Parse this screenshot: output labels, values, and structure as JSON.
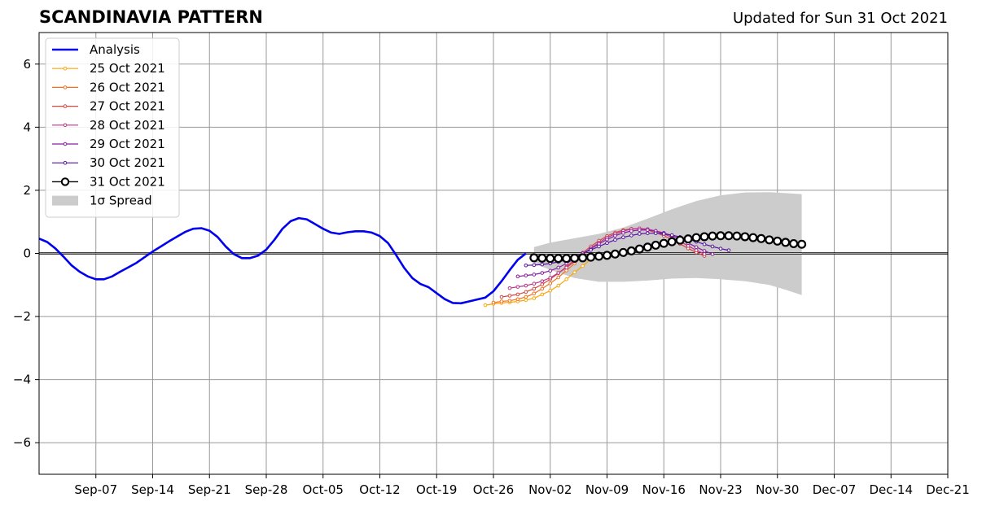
{
  "chart_data": {
    "type": "line",
    "title": "SCANDINAVIA PATTERN",
    "subtitle": "Updated for Sun 31 Oct 2021",
    "xlabel": "",
    "ylabel": "",
    "xlim": [
      "2021-08-31",
      "2021-12-21"
    ],
    "ylim": [
      -7,
      7
    ],
    "x_ticks": [
      "2021-09-07",
      "2021-09-14",
      "2021-09-21",
      "2021-09-28",
      "2021-10-05",
      "2021-10-12",
      "2021-10-19",
      "2021-10-26",
      "2021-11-02",
      "2021-11-09",
      "2021-11-16",
      "2021-11-23",
      "2021-11-30",
      "2021-12-07",
      "2021-12-14",
      "2021-12-21"
    ],
    "x_tick_labels": [
      "Sep-07",
      "Sep-14",
      "Sep-21",
      "Sep-28",
      "Oct-05",
      "Oct-12",
      "Oct-19",
      "Oct-26",
      "Nov-02",
      "Nov-09",
      "Nov-16",
      "Nov-23",
      "Nov-30",
      "Dec-07",
      "Dec-14",
      "Dec-21"
    ],
    "y_ticks": [
      -6,
      -4,
      -2,
      0,
      2,
      4,
      6
    ],
    "y_tick_labels": [
      "−6",
      "−4",
      "−2",
      "0",
      "2",
      "4",
      "6"
    ],
    "grid": true,
    "legend_position": "upper-left",
    "zero_line": 0,
    "analysis": {
      "name": "Analysis",
      "color": "#0000ee",
      "points": [
        [
          "2021-08-31",
          0.47
        ],
        [
          "2021-09-01",
          0.36
        ],
        [
          "2021-09-02",
          0.16
        ],
        [
          "2021-09-03",
          -0.1
        ],
        [
          "2021-09-04",
          -0.38
        ],
        [
          "2021-09-05",
          -0.58
        ],
        [
          "2021-09-06",
          -0.73
        ],
        [
          "2021-09-07",
          -0.82
        ],
        [
          "2021-09-08",
          -0.82
        ],
        [
          "2021-09-09",
          -0.73
        ],
        [
          "2021-09-10",
          -0.58
        ],
        [
          "2021-09-11",
          -0.44
        ],
        [
          "2021-09-12",
          -0.3
        ],
        [
          "2021-09-13",
          -0.12
        ],
        [
          "2021-09-14",
          0.06
        ],
        [
          "2021-09-15",
          0.22
        ],
        [
          "2021-09-16",
          0.38
        ],
        [
          "2021-09-17",
          0.53
        ],
        [
          "2021-09-18",
          0.68
        ],
        [
          "2021-09-19",
          0.78
        ],
        [
          "2021-09-20",
          0.8
        ],
        [
          "2021-09-21",
          0.72
        ],
        [
          "2021-09-22",
          0.52
        ],
        [
          "2021-09-23",
          0.22
        ],
        [
          "2021-09-24",
          -0.02
        ],
        [
          "2021-09-25",
          -0.15
        ],
        [
          "2021-09-26",
          -0.15
        ],
        [
          "2021-09-27",
          -0.07
        ],
        [
          "2021-09-28",
          0.12
        ],
        [
          "2021-09-29",
          0.43
        ],
        [
          "2021-09-30",
          0.78
        ],
        [
          "2021-10-01",
          1.02
        ],
        [
          "2021-10-02",
          1.12
        ],
        [
          "2021-10-03",
          1.08
        ],
        [
          "2021-10-04",
          0.93
        ],
        [
          "2021-10-05",
          0.78
        ],
        [
          "2021-10-06",
          0.66
        ],
        [
          "2021-10-07",
          0.62
        ],
        [
          "2021-10-08",
          0.67
        ],
        [
          "2021-10-09",
          0.7
        ],
        [
          "2021-10-10",
          0.7
        ],
        [
          "2021-10-11",
          0.66
        ],
        [
          "2021-10-12",
          0.55
        ],
        [
          "2021-10-13",
          0.33
        ],
        [
          "2021-10-14",
          -0.05
        ],
        [
          "2021-10-15",
          -0.46
        ],
        [
          "2021-10-16",
          -0.78
        ],
        [
          "2021-10-17",
          -0.97
        ],
        [
          "2021-10-18",
          -1.07
        ],
        [
          "2021-10-19",
          -1.26
        ],
        [
          "2021-10-20",
          -1.45
        ],
        [
          "2021-10-21",
          -1.57
        ],
        [
          "2021-10-22",
          -1.58
        ],
        [
          "2021-10-23",
          -1.52
        ],
        [
          "2021-10-24",
          -1.46
        ],
        [
          "2021-10-25",
          -1.4
        ],
        [
          "2021-10-26",
          -1.2
        ],
        [
          "2021-10-27",
          -0.88
        ],
        [
          "2021-10-28",
          -0.53
        ],
        [
          "2021-10-29",
          -0.2
        ],
        [
          "2021-10-30",
          0.0
        ]
      ]
    },
    "forecasts": [
      {
        "name": "25 Oct 2021",
        "color": "#fca50a",
        "points": [
          [
            "2021-10-25",
            -1.64
          ],
          [
            "2021-10-26",
            -1.6
          ],
          [
            "2021-10-27",
            -1.57
          ],
          [
            "2021-10-28",
            -1.55
          ],
          [
            "2021-10-29",
            -1.52
          ],
          [
            "2021-10-30",
            -1.48
          ],
          [
            "2021-10-31",
            -1.42
          ],
          [
            "2021-11-01",
            -1.3
          ],
          [
            "2021-11-02",
            -1.18
          ],
          [
            "2021-11-03",
            -1.02
          ],
          [
            "2021-11-04",
            -0.82
          ],
          [
            "2021-11-05",
            -0.6
          ],
          [
            "2021-11-06",
            -0.4
          ],
          [
            "2021-11-07",
            -0.18
          ]
        ]
      },
      {
        "name": "26 Oct 2021",
        "color": "#f1731d",
        "points": [
          [
            "2021-10-26",
            -1.56
          ],
          [
            "2021-10-27",
            -1.52
          ],
          [
            "2021-10-28",
            -1.5
          ],
          [
            "2021-10-29",
            -1.45
          ],
          [
            "2021-10-30",
            -1.38
          ],
          [
            "2021-10-31",
            -1.27
          ],
          [
            "2021-11-01",
            -1.12
          ],
          [
            "2021-11-02",
            -0.95
          ],
          [
            "2021-11-03",
            -0.76
          ],
          [
            "2021-11-04",
            -0.54
          ],
          [
            "2021-11-05",
            -0.32
          ],
          [
            "2021-11-06",
            -0.1
          ]
        ]
      },
      {
        "name": "27 Oct 2021",
        "color": "#d44842",
        "points": [
          [
            "2021-10-27",
            -1.38
          ],
          [
            "2021-10-28",
            -1.34
          ],
          [
            "2021-10-29",
            -1.3
          ],
          [
            "2021-10-30",
            -1.22
          ],
          [
            "2021-10-31",
            -1.12
          ],
          [
            "2021-11-01",
            -0.98
          ],
          [
            "2021-11-02",
            -0.82
          ],
          [
            "2021-11-03",
            -0.63
          ],
          [
            "2021-11-04",
            -0.42
          ],
          [
            "2021-11-05",
            -0.2
          ],
          [
            "2021-11-06",
            0.02
          ],
          [
            "2021-11-07",
            0.22
          ],
          [
            "2021-11-08",
            0.4
          ],
          [
            "2021-11-09",
            0.55
          ],
          [
            "2021-11-10",
            0.66
          ],
          [
            "2021-11-11",
            0.74
          ],
          [
            "2021-11-12",
            0.78
          ],
          [
            "2021-11-13",
            0.78
          ],
          [
            "2021-11-14",
            0.74
          ],
          [
            "2021-11-15",
            0.66
          ],
          [
            "2021-11-16",
            0.56
          ],
          [
            "2021-11-17",
            0.44
          ],
          [
            "2021-11-18",
            0.3
          ],
          [
            "2021-11-19",
            0.16
          ],
          [
            "2021-11-20",
            0.03
          ],
          [
            "2021-11-21",
            -0.08
          ]
        ]
      },
      {
        "name": "28 Oct 2021",
        "color": "#bc3587",
        "points": [
          [
            "2021-10-28",
            -1.1
          ],
          [
            "2021-10-29",
            -1.06
          ],
          [
            "2021-10-30",
            -1.02
          ],
          [
            "2021-10-31",
            -0.96
          ],
          [
            "2021-11-01",
            -0.88
          ],
          [
            "2021-11-02",
            -0.77
          ],
          [
            "2021-11-03",
            -0.62
          ],
          [
            "2021-11-04",
            -0.45
          ],
          [
            "2021-11-05",
            -0.25
          ],
          [
            "2021-11-06",
            -0.04
          ],
          [
            "2021-11-07",
            0.16
          ],
          [
            "2021-11-08",
            0.34
          ],
          [
            "2021-11-09",
            0.5
          ],
          [
            "2021-11-10",
            0.62
          ],
          [
            "2021-11-11",
            0.71
          ],
          [
            "2021-11-12",
            0.77
          ],
          [
            "2021-11-13",
            0.79
          ],
          [
            "2021-11-14",
            0.77
          ],
          [
            "2021-11-15",
            0.71
          ],
          [
            "2021-11-16",
            0.62
          ],
          [
            "2021-11-17",
            0.51
          ],
          [
            "2021-11-18",
            0.38
          ],
          [
            "2021-11-19",
            0.24
          ],
          [
            "2021-11-20",
            0.1
          ],
          [
            "2021-11-21",
            -0.02
          ]
        ]
      },
      {
        "name": "29 Oct 2021",
        "color": "#8a1ea0",
        "points": [
          [
            "2021-10-29",
            -0.73
          ],
          [
            "2021-10-30",
            -0.7
          ],
          [
            "2021-10-31",
            -0.67
          ],
          [
            "2021-11-01",
            -0.62
          ],
          [
            "2021-11-02",
            -0.55
          ],
          [
            "2021-11-03",
            -0.45
          ],
          [
            "2021-11-04",
            -0.32
          ],
          [
            "2021-11-05",
            -0.17
          ],
          [
            "2021-11-06",
            -0.01
          ],
          [
            "2021-11-07",
            0.15
          ],
          [
            "2021-11-08",
            0.3
          ],
          [
            "2021-11-09",
            0.44
          ],
          [
            "2021-11-10",
            0.56
          ],
          [
            "2021-11-11",
            0.65
          ],
          [
            "2021-11-12",
            0.71
          ],
          [
            "2021-11-13",
            0.74
          ],
          [
            "2021-11-14",
            0.74
          ],
          [
            "2021-11-15",
            0.71
          ],
          [
            "2021-11-16",
            0.65
          ],
          [
            "2021-11-17",
            0.56
          ],
          [
            "2021-11-18",
            0.45
          ],
          [
            "2021-11-19",
            0.33
          ],
          [
            "2021-11-20",
            0.2
          ],
          [
            "2021-11-21",
            0.08
          ],
          [
            "2021-11-22",
            -0.02
          ]
        ]
      },
      {
        "name": "30 Oct 2021",
        "color": "#5712a0",
        "points": [
          [
            "2021-10-30",
            -0.38
          ],
          [
            "2021-10-31",
            -0.37
          ],
          [
            "2021-11-01",
            -0.35
          ],
          [
            "2021-11-02",
            -0.32
          ],
          [
            "2021-11-03",
            -0.27
          ],
          [
            "2021-11-04",
            -0.2
          ],
          [
            "2021-11-05",
            -0.11
          ],
          [
            "2021-11-06",
            0.0
          ],
          [
            "2021-11-07",
            0.11
          ],
          [
            "2021-11-08",
            0.22
          ],
          [
            "2021-11-09",
            0.33
          ],
          [
            "2021-11-10",
            0.43
          ],
          [
            "2021-11-11",
            0.51
          ],
          [
            "2021-11-12",
            0.57
          ],
          [
            "2021-11-13",
            0.62
          ],
          [
            "2021-11-14",
            0.64
          ],
          [
            "2021-11-15",
            0.64
          ],
          [
            "2021-11-16",
            0.62
          ],
          [
            "2021-11-17",
            0.58
          ],
          [
            "2021-11-18",
            0.52
          ],
          [
            "2021-11-19",
            0.45
          ],
          [
            "2021-11-20",
            0.37
          ],
          [
            "2021-11-21",
            0.29
          ],
          [
            "2021-11-22",
            0.22
          ],
          [
            "2021-11-23",
            0.15
          ],
          [
            "2021-11-24",
            0.1
          ]
        ]
      }
    ],
    "latest": {
      "name": "31 Oct 2021",
      "color": "#000000",
      "points": [
        [
          "2021-10-31",
          -0.14
        ],
        [
          "2021-11-01",
          -0.15
        ],
        [
          "2021-11-02",
          -0.16
        ],
        [
          "2021-11-03",
          -0.16
        ],
        [
          "2021-11-04",
          -0.16
        ],
        [
          "2021-11-05",
          -0.15
        ],
        [
          "2021-11-06",
          -0.14
        ],
        [
          "2021-11-07",
          -0.12
        ],
        [
          "2021-11-08",
          -0.09
        ],
        [
          "2021-11-09",
          -0.06
        ],
        [
          "2021-11-10",
          -0.02
        ],
        [
          "2021-11-11",
          0.03
        ],
        [
          "2021-11-12",
          0.08
        ],
        [
          "2021-11-13",
          0.14
        ],
        [
          "2021-11-14",
          0.2
        ],
        [
          "2021-11-15",
          0.26
        ],
        [
          "2021-11-16",
          0.32
        ],
        [
          "2021-11-17",
          0.37
        ],
        [
          "2021-11-18",
          0.42
        ],
        [
          "2021-11-19",
          0.46
        ],
        [
          "2021-11-20",
          0.5
        ],
        [
          "2021-11-21",
          0.53
        ],
        [
          "2021-11-22",
          0.55
        ],
        [
          "2021-11-23",
          0.56
        ],
        [
          "2021-11-24",
          0.56
        ],
        [
          "2021-11-25",
          0.55
        ],
        [
          "2021-11-26",
          0.53
        ],
        [
          "2021-11-27",
          0.5
        ],
        [
          "2021-11-28",
          0.47
        ],
        [
          "2021-11-29",
          0.43
        ],
        [
          "2021-11-30",
          0.39
        ],
        [
          "2021-12-01",
          0.35
        ],
        [
          "2021-12-02",
          0.31
        ],
        [
          "2021-12-03",
          0.29
        ]
      ]
    },
    "spread": {
      "name": "1σ Spread",
      "color": "#cccccc",
      "upper": [
        [
          "2021-10-31",
          0.2
        ],
        [
          "2021-11-02",
          0.34
        ],
        [
          "2021-11-05",
          0.48
        ],
        [
          "2021-11-08",
          0.62
        ],
        [
          "2021-11-11",
          0.82
        ],
        [
          "2021-11-14",
          1.1
        ],
        [
          "2021-11-17",
          1.4
        ],
        [
          "2021-11-20",
          1.66
        ],
        [
          "2021-11-23",
          1.84
        ],
        [
          "2021-11-26",
          1.93
        ],
        [
          "2021-11-29",
          1.94
        ],
        [
          "2021-12-01",
          1.91
        ],
        [
          "2021-12-03",
          1.88
        ]
      ],
      "lower": [
        [
          "2021-10-31",
          -0.32
        ],
        [
          "2021-11-02",
          -0.52
        ],
        [
          "2021-11-05",
          -0.78
        ],
        [
          "2021-11-08",
          -0.9
        ],
        [
          "2021-11-11",
          -0.9
        ],
        [
          "2021-11-14",
          -0.86
        ],
        [
          "2021-11-17",
          -0.8
        ],
        [
          "2021-11-20",
          -0.78
        ],
        [
          "2021-11-23",
          -0.82
        ],
        [
          "2021-11-26",
          -0.88
        ],
        [
          "2021-11-29",
          -1.0
        ],
        [
          "2021-12-01",
          -1.15
        ],
        [
          "2021-12-03",
          -1.32
        ]
      ]
    },
    "legend": [
      {
        "label": "Analysis",
        "color": "#0000ee",
        "kind": "thick-line"
      },
      {
        "label": "25 Oct 2021",
        "color": "#fca50a",
        "kind": "line-dot"
      },
      {
        "label": "26 Oct 2021",
        "color": "#f1731d",
        "kind": "line-dot"
      },
      {
        "label": "27 Oct 2021",
        "color": "#d44842",
        "kind": "line-dot"
      },
      {
        "label": "28 Oct 2021",
        "color": "#bc3587",
        "kind": "line-dot"
      },
      {
        "label": "29 Oct 2021",
        "color": "#8a1ea0",
        "kind": "line-dot"
      },
      {
        "label": "30 Oct 2021",
        "color": "#5712a0",
        "kind": "line-dot"
      },
      {
        "label": "31 Oct 2021",
        "color": "#000000",
        "kind": "line-circle"
      },
      {
        "label": "1σ Spread",
        "color": "#cccccc",
        "kind": "patch"
      }
    ]
  }
}
